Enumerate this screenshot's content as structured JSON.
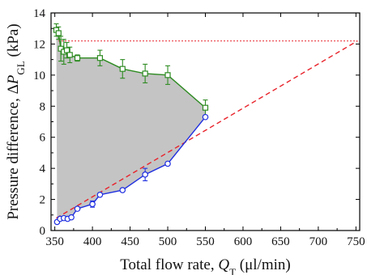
{
  "chart_data": {
    "type": "scatter",
    "xlabel": "Total flow rate, Q_T (μl/min)",
    "ylabel": "Pressure difference, ΔP_GL (kPa)",
    "xlim": [
      345,
      755
    ],
    "ylim": [
      0,
      14
    ],
    "x_ticks": [
      "350",
      "400",
      "450",
      "500",
      "550",
      "600",
      "650",
      "700",
      "750"
    ],
    "y_ticks": [
      "0",
      "2",
      "4",
      "6",
      "8",
      "10",
      "12",
      "14"
    ],
    "grid": false,
    "legend": "none",
    "series": [
      {
        "color": "#2e8b22",
        "marker": "open-square",
        "points": [
          {
            "x": 352,
            "y": 12.9,
            "err": 0.4
          },
          {
            "x": 355,
            "y": 12.7,
            "err": 0.4
          },
          {
            "x": 358,
            "y": 11.7,
            "err": 0.8
          },
          {
            "x": 362,
            "y": 11.5,
            "err": 0.8
          },
          {
            "x": 366,
            "y": 11.6,
            "err": 0.5
          },
          {
            "x": 370,
            "y": 11.3,
            "err": 0.5
          },
          {
            "x": 380,
            "y": 11.1,
            "err": 0.2
          },
          {
            "x": 410,
            "y": 11.1,
            "err": 0.5
          },
          {
            "x": 440,
            "y": 10.4,
            "err": 0.6
          },
          {
            "x": 470,
            "y": 10.1,
            "err": 0.6
          },
          {
            "x": 500,
            "y": 10.0,
            "err": 0.6
          },
          {
            "x": 550,
            "y": 7.9,
            "err": 0.5
          }
        ]
      },
      {
        "color": "#1f2fe0",
        "marker": "open-circle",
        "points": [
          {
            "x": 353,
            "y": 0.55,
            "err": 0.1
          },
          {
            "x": 357,
            "y": 0.75,
            "err": 0.1
          },
          {
            "x": 362,
            "y": 0.8,
            "err": 0.1
          },
          {
            "x": 367,
            "y": 0.75,
            "err": 0.1
          },
          {
            "x": 372,
            "y": 0.85,
            "err": 0.1
          },
          {
            "x": 380,
            "y": 1.4,
            "err": 0.1
          },
          {
            "x": 400,
            "y": 1.7,
            "err": 0.2
          },
          {
            "x": 410,
            "y": 2.3,
            "err": 0.1
          },
          {
            "x": 440,
            "y": 2.6,
            "err": 0.1
          },
          {
            "x": 470,
            "y": 3.6,
            "err": 0.4
          },
          {
            "x": 500,
            "y": 4.3,
            "err": 0.1
          },
          {
            "x": 550,
            "y": 7.3,
            "err": 0.1
          }
        ]
      }
    ],
    "reference_lines": [
      {
        "style": "dotted",
        "color": "#e8222a",
        "y": 12.2,
        "x_range": [
          355,
          752
        ]
      },
      {
        "style": "dashed",
        "color": "#e8222a",
        "from": {
          "x": 352,
          "y": 0.8
        },
        "to": {
          "x": 752,
          "y": 12.2
        }
      }
    ],
    "shaded_region": {
      "color": "#c4c4c4",
      "between": "green-series upper, blue-series lower"
    }
  }
}
